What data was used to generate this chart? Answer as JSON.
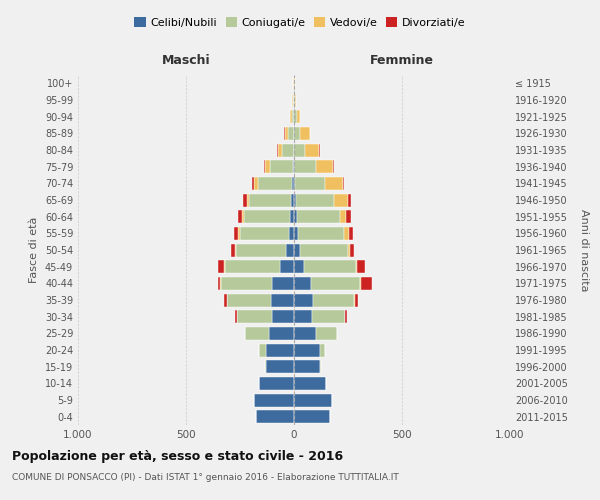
{
  "age_groups": [
    "0-4",
    "5-9",
    "10-14",
    "15-19",
    "20-24",
    "25-29",
    "30-34",
    "35-39",
    "40-44",
    "45-49",
    "50-54",
    "55-59",
    "60-64",
    "65-69",
    "70-74",
    "75-79",
    "80-84",
    "85-89",
    "90-94",
    "95-99",
    "100+"
  ],
  "birth_years": [
    "2011-2015",
    "2006-2010",
    "2001-2005",
    "1996-2000",
    "1991-1995",
    "1986-1990",
    "1981-1985",
    "1976-1980",
    "1971-1975",
    "1966-1970",
    "1961-1965",
    "1956-1960",
    "1951-1955",
    "1946-1950",
    "1941-1945",
    "1936-1940",
    "1931-1935",
    "1926-1930",
    "1921-1925",
    "1916-1920",
    "≤ 1915"
  ],
  "male": {
    "celibi": [
      175,
      185,
      160,
      130,
      130,
      115,
      100,
      105,
      100,
      65,
      35,
      22,
      18,
      12,
      8,
      3,
      1,
      0,
      0,
      0,
      0
    ],
    "coniugati": [
      0,
      0,
      0,
      5,
      30,
      110,
      165,
      205,
      240,
      255,
      235,
      230,
      215,
      195,
      160,
      110,
      55,
      28,
      10,
      4,
      2
    ],
    "vedovi": [
      0,
      0,
      0,
      0,
      0,
      0,
      0,
      0,
      1,
      2,
      3,
      5,
      8,
      12,
      18,
      20,
      20,
      15,
      8,
      3,
      1
    ],
    "divorziati": [
      0,
      0,
      0,
      0,
      0,
      0,
      8,
      15,
      12,
      30,
      18,
      22,
      20,
      18,
      8,
      5,
      2,
      1,
      0,
      0,
      0
    ]
  },
  "female": {
    "nubili": [
      165,
      175,
      150,
      120,
      120,
      100,
      85,
      90,
      80,
      45,
      28,
      18,
      12,
      8,
      5,
      2,
      0,
      0,
      0,
      0,
      0
    ],
    "coniugate": [
      0,
      0,
      0,
      5,
      25,
      100,
      150,
      190,
      225,
      240,
      220,
      215,
      200,
      175,
      140,
      100,
      52,
      28,
      12,
      4,
      2
    ],
    "vedove": [
      0,
      0,
      0,
      0,
      0,
      0,
      1,
      3,
      5,
      8,
      12,
      20,
      30,
      65,
      80,
      80,
      65,
      45,
      18,
      5,
      2
    ],
    "divorziate": [
      0,
      0,
      0,
      0,
      0,
      0,
      8,
      15,
      50,
      35,
      20,
      22,
      22,
      18,
      8,
      5,
      2,
      1,
      0,
      0,
      0
    ]
  },
  "colors": {
    "celibi_nubili": "#3d6b9e",
    "coniugati": "#b5c99a",
    "vedovi": "#f0c060",
    "divorziati": "#cc2222"
  },
  "title": "Popolazione per età, sesso e stato civile - 2016",
  "subtitle": "COMUNE DI PONSACCO (PI) - Dati ISTAT 1° gennaio 2016 - Elaborazione TUTTITALIA.IT",
  "xlabel_left": "Maschi",
  "xlabel_right": "Femmine",
  "ylabel_left": "Fasce di età",
  "ylabel_right": "Anni di nascita",
  "xlim": 1000,
  "xticklabels": [
    "1.000",
    "500",
    "0",
    "500",
    "1.000"
  ],
  "background_color": "#f0f0f0",
  "bar_edge_color": "white",
  "grid_color": "#cccccc"
}
